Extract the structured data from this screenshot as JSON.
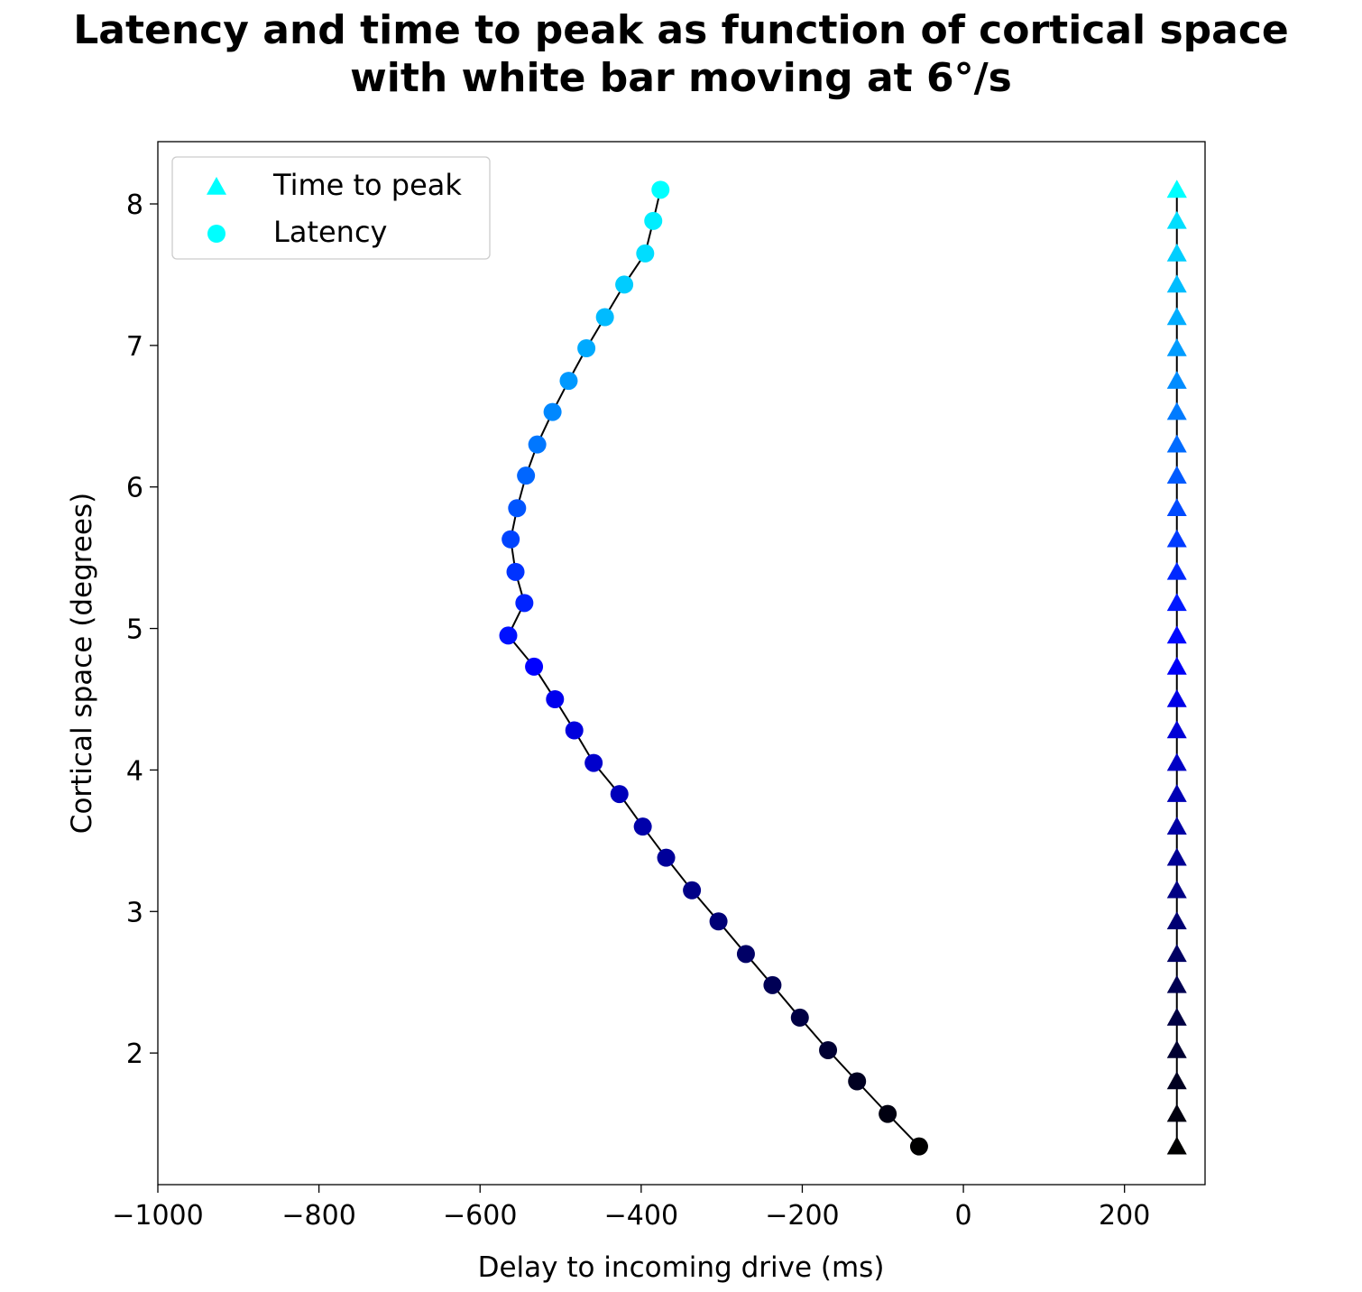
{
  "chart_data": {
    "type": "scatter",
    "title_lines": [
      "Latency and time to peak as function of cortical space",
      "with white bar moving at 6°/s"
    ],
    "xlabel": "Delay to incoming drive (ms)",
    "ylabel": "Cortical space (degrees)",
    "xlim": [
      -1000,
      300
    ],
    "ylim": [
      1.07,
      8.44
    ],
    "x_ticks": [
      -1000,
      -800,
      -600,
      -400,
      -200,
      0,
      200
    ],
    "x_tick_labels": [
      "−1000",
      "−800",
      "−600",
      "−400",
      "−200",
      "0",
      "200"
    ],
    "y_ticks": [
      2,
      3,
      4,
      5,
      6,
      7,
      8
    ],
    "y_tick_labels": [
      "2",
      "3",
      "4",
      "5",
      "6",
      "7",
      "8"
    ],
    "grid": false,
    "legend_position": "top-left",
    "color_gradient": {
      "from": "#000000",
      "mid": "#0000ff",
      "to": "#00ffff"
    },
    "series": [
      {
        "name": "Time to peak",
        "marker": "triangle",
        "legend_color": "#00ffff",
        "line_color": "#000000",
        "x": [
          265,
          265,
          265,
          265,
          265,
          265,
          265,
          265,
          265,
          265,
          265,
          265,
          265,
          265,
          265,
          265,
          265,
          265,
          265,
          265,
          265,
          265,
          265,
          265,
          265,
          265,
          265,
          265,
          265,
          265,
          265,
          265
        ],
        "y": [
          1.34,
          1.57,
          1.8,
          2.02,
          2.25,
          2.48,
          2.7,
          2.93,
          3.15,
          3.38,
          3.6,
          3.83,
          4.05,
          4.28,
          4.5,
          4.73,
          4.95,
          5.18,
          5.4,
          5.63,
          5.85,
          6.08,
          6.3,
          6.53,
          6.75,
          6.98,
          7.2,
          7.43,
          7.65,
          7.88,
          8.1,
          8.1
        ]
      },
      {
        "name": "Latency",
        "marker": "circle",
        "legend_color": "#00ffff",
        "line_color": "#000000",
        "x": [
          -55,
          -94,
          -132,
          -168,
          -203,
          -237,
          -270,
          -304,
          -337,
          -369,
          -398,
          -427,
          -459,
          -483,
          -507,
          -533,
          -565,
          -545,
          -556,
          -562,
          -554,
          -543,
          -529,
          -510,
          -490,
          -468,
          -445,
          -421,
          -395,
          -385,
          -376
        ],
        "y": [
          1.34,
          1.57,
          1.8,
          2.02,
          2.25,
          2.48,
          2.7,
          2.93,
          3.15,
          3.38,
          3.6,
          3.83,
          4.05,
          4.28,
          4.5,
          4.73,
          4.95,
          5.18,
          5.4,
          5.63,
          5.85,
          6.08,
          6.3,
          6.53,
          6.75,
          6.98,
          7.2,
          7.43,
          7.65,
          7.88,
          8.1
        ]
      }
    ]
  }
}
